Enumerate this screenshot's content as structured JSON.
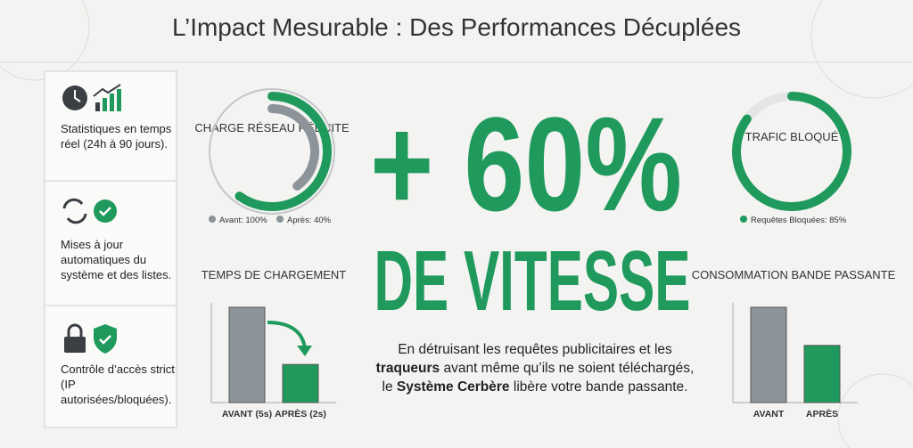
{
  "title": "L’Impact Mesurable : Des Performances Décuplées",
  "features": [
    {
      "text": "Statistiques en temps réel (24h à 90 jours)."
    },
    {
      "text": "Mises à jour automatiques du système et des listes."
    },
    {
      "text": "Contrôle d’accès strict (IP autorisées/bloquées)."
    }
  ],
  "charge": {
    "label": "CHARGE RÉSEAU RÉDUITE",
    "legend": [
      "Avant: 100%",
      "Après: 40%"
    ],
    "values": [
      100,
      40
    ]
  },
  "trafic": {
    "label": "TRAFIC BLOQUÉ",
    "legend": [
      "Requêtes Bloquées: 85%"
    ],
    "values": [
      85
    ]
  },
  "headline": {
    "big": "+ 60%",
    "sub": "DE VITESSE"
  },
  "paragraph": [
    {
      "text": "En détruisant les requêtes publicitaires et les ",
      "bold": false
    },
    {
      "text": "traqueurs",
      "bold": true
    },
    {
      "text": " avant même qu’ils ne soient téléchargés, le ",
      "bold": false
    },
    {
      "text": "Système Cerbère",
      "bold": true
    },
    {
      "text": " libère votre bande passante.",
      "bold": false
    }
  ],
  "chargement": {
    "title": "TEMPS DE CHARGEMENT",
    "categories": [
      "AVANT (5s)",
      "APRÈS (2s)"
    ],
    "values": [
      5,
      2
    ],
    "ylim": [
      0,
      5
    ],
    "colors": [
      "#8c9399",
      "#1f9a5c"
    ]
  },
  "bande": {
    "title": "CONSOMMATION BANDE PASSANTE",
    "categories": [
      "AVANT",
      "APRÈS"
    ],
    "values": [
      100,
      60
    ],
    "ylim": [
      0,
      100
    ],
    "colors": [
      "#8c9399",
      "#1f9a5c"
    ]
  }
}
